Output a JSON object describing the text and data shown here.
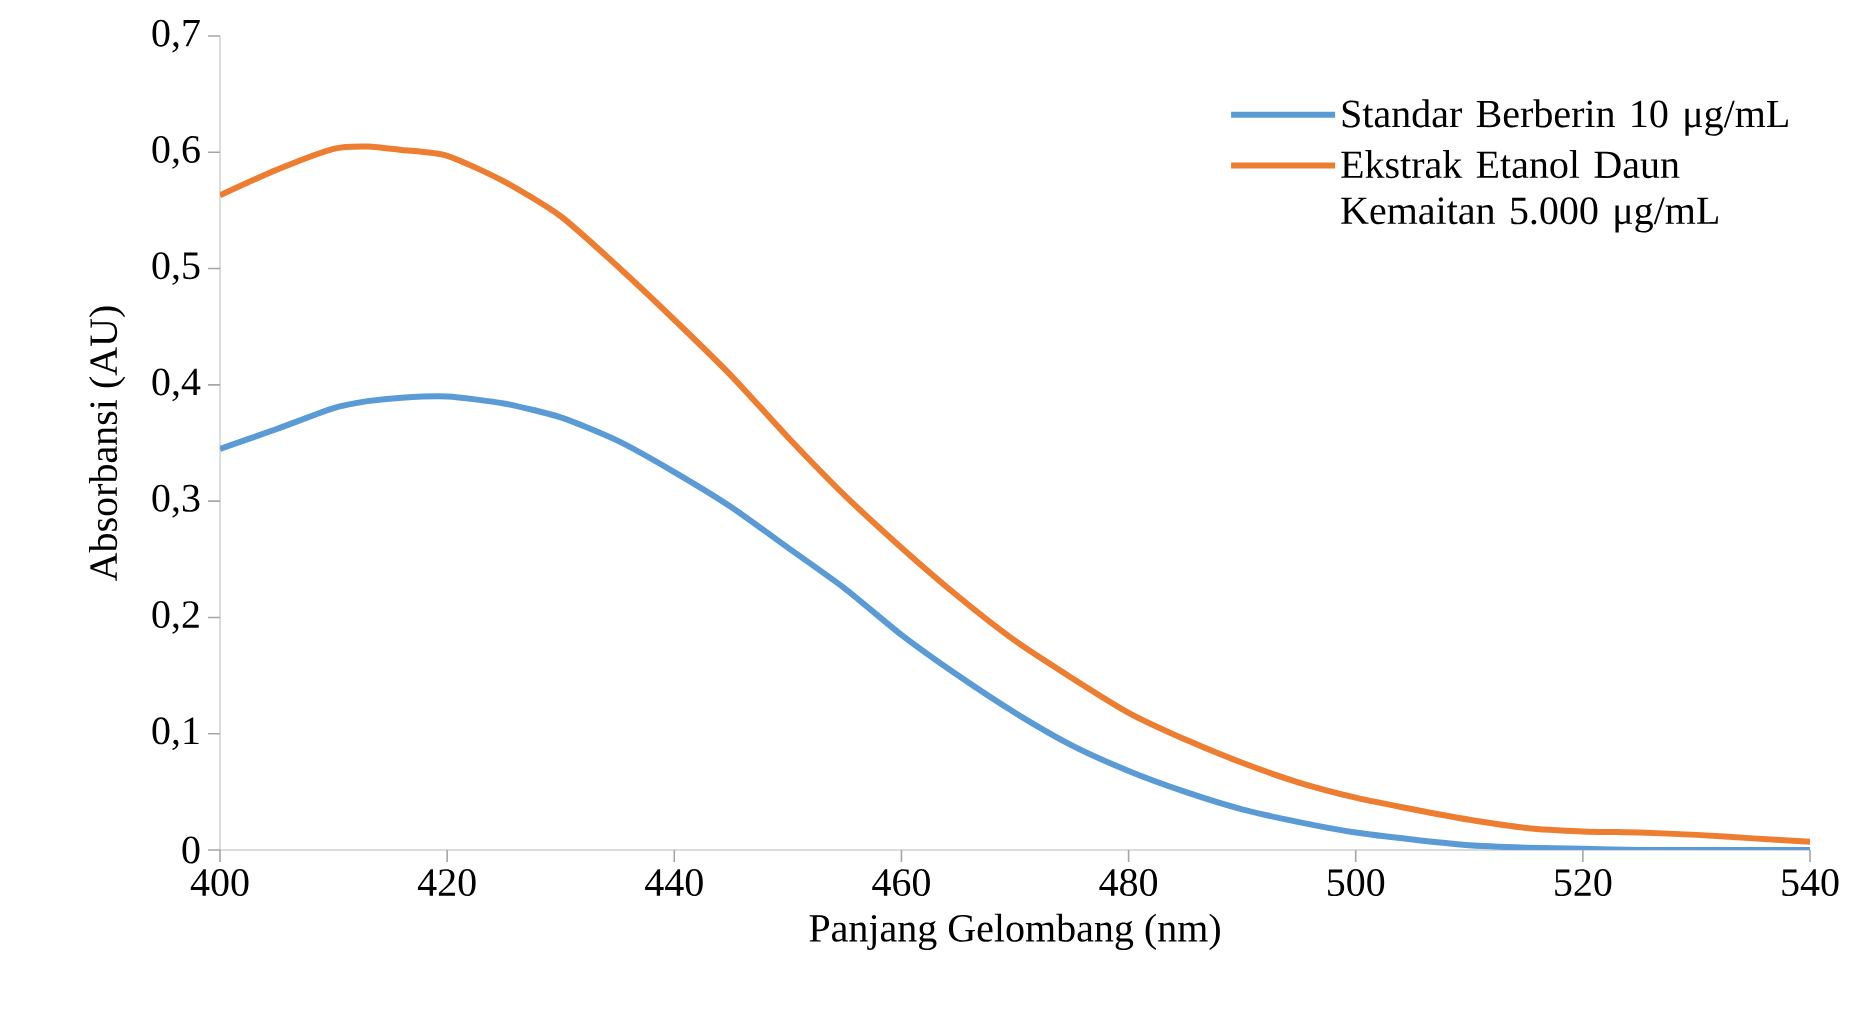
{
  "chart_data": {
    "type": "line",
    "xlabel": "Panjang Gelombang (nm)",
    "ylabel": "Absorbansi (AU)",
    "x": [
      400,
      405,
      410,
      413,
      416,
      420,
      425,
      430,
      435,
      440,
      445,
      450,
      455,
      460,
      465,
      470,
      475,
      480,
      485,
      490,
      495,
      500,
      505,
      510,
      515,
      520,
      525,
      530,
      535,
      540
    ],
    "series": [
      {
        "name": "Standar Berberin 10 μg/mL",
        "color": "#5b9bd5",
        "values": [
          0.345,
          0.362,
          0.38,
          0.386,
          0.389,
          0.39,
          0.384,
          0.372,
          0.352,
          0.325,
          0.295,
          0.26,
          0.225,
          0.185,
          0.15,
          0.118,
          0.09,
          0.068,
          0.05,
          0.035,
          0.024,
          0.015,
          0.009,
          0.004,
          0.002,
          0.001,
          0,
          0,
          0,
          0
        ]
      },
      {
        "name": "Ekstrak Etanol Daun Kemaitan 5.000 μg/mL",
        "color": "#ed7d31",
        "values": [
          0.563,
          0.585,
          0.603,
          0.605,
          0.602,
          0.597,
          0.575,
          0.545,
          0.502,
          0.456,
          0.408,
          0.355,
          0.305,
          0.26,
          0.218,
          0.18,
          0.148,
          0.118,
          0.095,
          0.075,
          0.058,
          0.045,
          0.035,
          0.026,
          0.019,
          0.016,
          0.015,
          0.013,
          0.01,
          0.007
        ]
      }
    ],
    "xlim": [
      400,
      540
    ],
    "ylim": [
      0,
      0.7
    ],
    "xticks": [
      400,
      420,
      440,
      460,
      480,
      500,
      520,
      540
    ],
    "yticks": [
      0,
      {
        "value": 0.1,
        "label": "0,1"
      },
      {
        "value": 0.2,
        "label": "0,2"
      },
      {
        "value": 0.3,
        "label": "0,3"
      },
      {
        "value": 0.4,
        "label": "0,4"
      },
      {
        "value": 0.5,
        "label": "0,5"
      },
      {
        "value": 0.6,
        "label": "0,6"
      },
      {
        "value": 0.7,
        "label": "0,7"
      }
    ],
    "legend": "top right",
    "grid": false,
    "line_style": "solid"
  }
}
